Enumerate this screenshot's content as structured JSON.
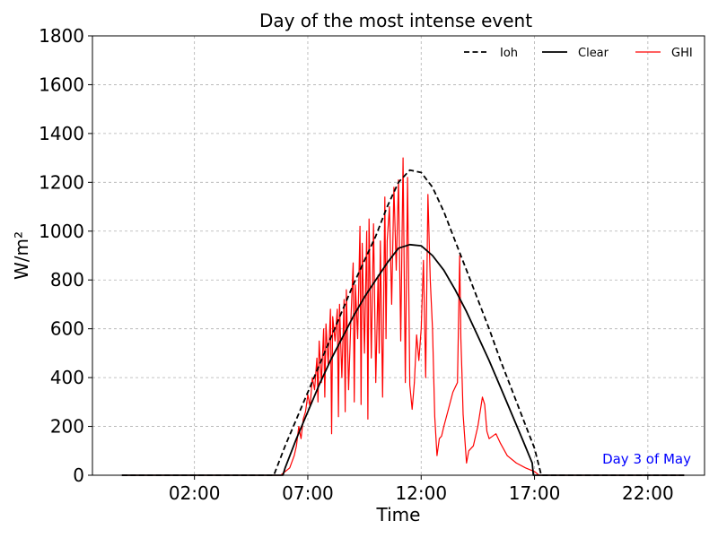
{
  "chart_data": {
    "type": "line",
    "title": "Day of the most intense event",
    "xlabel": "Time",
    "ylabel": "W/m²",
    "ylim": [
      0,
      1800
    ],
    "xlim_hours": [
      -2.5,
      24.5
    ],
    "yticks": [
      0,
      200,
      400,
      600,
      800,
      1000,
      1200,
      1400,
      1600,
      1800
    ],
    "xticks": [
      {
        "hour": 2,
        "label": "02:00"
      },
      {
        "hour": 7,
        "label": "07:00"
      },
      {
        "hour": 12,
        "label": "12:00"
      },
      {
        "hour": 17,
        "label": "17:00"
      },
      {
        "hour": 22,
        "label": "22:00"
      }
    ],
    "grid": true,
    "legend_position": "top-right",
    "annotation": {
      "text": "Day 3 of May",
      "color": "#0000ff",
      "position": "bottom-right"
    },
    "series": [
      {
        "name": "Ioh",
        "color": "#000000",
        "style": "dashed",
        "points": [
          [
            -1.2,
            0
          ],
          [
            5.5,
            0
          ],
          [
            6.0,
            120
          ],
          [
            6.5,
            230
          ],
          [
            7.0,
            340
          ],
          [
            7.5,
            450
          ],
          [
            8.0,
            560
          ],
          [
            8.5,
            670
          ],
          [
            9.0,
            780
          ],
          [
            9.5,
            880
          ],
          [
            10.0,
            980
          ],
          [
            10.5,
            1100
          ],
          [
            11.0,
            1200
          ],
          [
            11.5,
            1250
          ],
          [
            12.0,
            1240
          ],
          [
            12.5,
            1180
          ],
          [
            13.0,
            1080
          ],
          [
            13.5,
            960
          ],
          [
            14.0,
            840
          ],
          [
            14.5,
            720
          ],
          [
            15.0,
            600
          ],
          [
            15.5,
            470
          ],
          [
            16.0,
            350
          ],
          [
            16.5,
            230
          ],
          [
            17.0,
            110
          ],
          [
            17.3,
            0
          ],
          [
            23.6,
            0
          ]
        ]
      },
      {
        "name": "Clear",
        "color": "#000000",
        "style": "solid",
        "points": [
          [
            -1.2,
            0
          ],
          [
            5.9,
            0
          ],
          [
            6.0,
            30
          ],
          [
            6.5,
            150
          ],
          [
            7.0,
            260
          ],
          [
            7.5,
            370
          ],
          [
            8.0,
            470
          ],
          [
            8.5,
            560
          ],
          [
            9.0,
            650
          ],
          [
            9.5,
            730
          ],
          [
            10.0,
            800
          ],
          [
            10.5,
            870
          ],
          [
            11.0,
            930
          ],
          [
            11.5,
            945
          ],
          [
            12.0,
            940
          ],
          [
            12.5,
            900
          ],
          [
            13.0,
            840
          ],
          [
            13.5,
            760
          ],
          [
            14.0,
            670
          ],
          [
            14.5,
            570
          ],
          [
            15.0,
            470
          ],
          [
            15.5,
            360
          ],
          [
            16.0,
            250
          ],
          [
            16.5,
            140
          ],
          [
            16.9,
            50
          ],
          [
            16.95,
            0
          ],
          [
            23.6,
            0
          ]
        ]
      },
      {
        "name": "GHI",
        "color": "#ff0000",
        "style": "solid",
        "points": [
          [
            -1.2,
            0
          ],
          [
            5.8,
            0
          ],
          [
            6.2,
            30
          ],
          [
            6.4,
            80
          ],
          [
            6.5,
            120
          ],
          [
            6.6,
            200
          ],
          [
            6.7,
            150
          ],
          [
            6.8,
            230
          ],
          [
            6.9,
            260
          ],
          [
            7.0,
            330
          ],
          [
            7.1,
            280
          ],
          [
            7.2,
            400
          ],
          [
            7.3,
            350
          ],
          [
            7.4,
            480
          ],
          [
            7.45,
            300
          ],
          [
            7.5,
            550
          ],
          [
            7.6,
            380
          ],
          [
            7.7,
            600
          ],
          [
            7.75,
            320
          ],
          [
            7.8,
            620
          ],
          [
            7.9,
            450
          ],
          [
            8.0,
            680
          ],
          [
            8.05,
            170
          ],
          [
            8.1,
            650
          ],
          [
            8.2,
            550
          ],
          [
            8.3,
            680
          ],
          [
            8.35,
            240
          ],
          [
            8.4,
            700
          ],
          [
            8.5,
            400
          ],
          [
            8.6,
            720
          ],
          [
            8.65,
            260
          ],
          [
            8.7,
            760
          ],
          [
            8.8,
            350
          ],
          [
            8.9,
            640
          ],
          [
            9.0,
            870
          ],
          [
            9.05,
            300
          ],
          [
            9.1,
            780
          ],
          [
            9.2,
            560
          ],
          [
            9.3,
            1020
          ],
          [
            9.35,
            290
          ],
          [
            9.4,
            950
          ],
          [
            9.5,
            500
          ],
          [
            9.6,
            1000
          ],
          [
            9.65,
            230
          ],
          [
            9.7,
            1050
          ],
          [
            9.8,
            480
          ],
          [
            9.9,
            1030
          ],
          [
            10.0,
            380
          ],
          [
            10.1,
            820
          ],
          [
            10.15,
            500
          ],
          [
            10.2,
            960
          ],
          [
            10.3,
            320
          ],
          [
            10.4,
            1140
          ],
          [
            10.45,
            560
          ],
          [
            10.5,
            960
          ],
          [
            10.6,
            1100
          ],
          [
            10.7,
            700
          ],
          [
            10.8,
            1180
          ],
          [
            10.9,
            840
          ],
          [
            11.0,
            1210
          ],
          [
            11.1,
            550
          ],
          [
            11.2,
            1300
          ],
          [
            11.3,
            380
          ],
          [
            11.4,
            1220
          ],
          [
            11.5,
            370
          ],
          [
            11.6,
            270
          ],
          [
            11.7,
            380
          ],
          [
            11.8,
            575
          ],
          [
            11.9,
            470
          ],
          [
            12.0,
            600
          ],
          [
            12.1,
            880
          ],
          [
            12.2,
            400
          ],
          [
            12.3,
            1150
          ],
          [
            12.4,
            800
          ],
          [
            12.5,
            600
          ],
          [
            12.6,
            240
          ],
          [
            12.7,
            80
          ],
          [
            12.8,
            150
          ],
          [
            12.9,
            160
          ],
          [
            13.0,
            200
          ],
          [
            13.2,
            270
          ],
          [
            13.4,
            340
          ],
          [
            13.6,
            380
          ],
          [
            13.7,
            900
          ],
          [
            13.75,
            560
          ],
          [
            13.8,
            420
          ],
          [
            13.85,
            250
          ],
          [
            13.9,
            180
          ],
          [
            14.0,
            50
          ],
          [
            14.1,
            100
          ],
          [
            14.3,
            120
          ],
          [
            14.5,
            200
          ],
          [
            14.7,
            320
          ],
          [
            14.8,
            290
          ],
          [
            14.9,
            180
          ],
          [
            15.0,
            150
          ],
          [
            15.3,
            170
          ],
          [
            15.5,
            130
          ],
          [
            15.8,
            80
          ],
          [
            16.2,
            50
          ],
          [
            16.6,
            30
          ],
          [
            17.0,
            15
          ],
          [
            17.2,
            0
          ],
          [
            23.6,
            0
          ]
        ]
      }
    ]
  }
}
